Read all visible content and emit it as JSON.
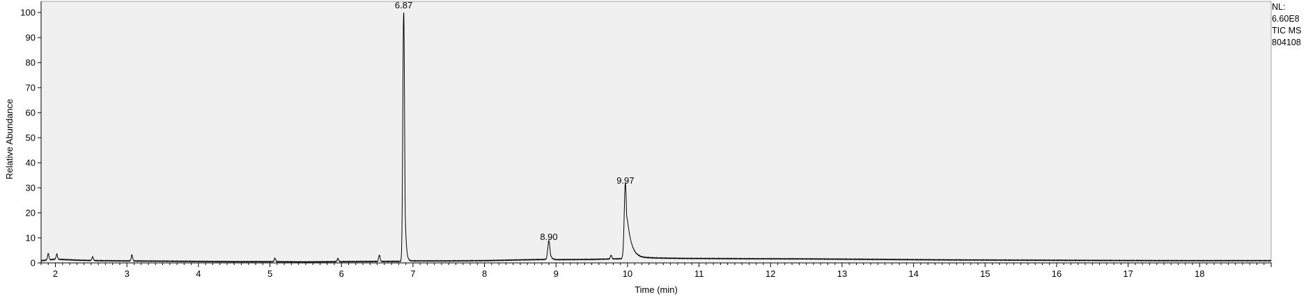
{
  "info": {
    "nl_label": "NL:",
    "nl_value": "6.60E8",
    "trace": "TIC  MS",
    "sample": "804108"
  },
  "colors": {
    "plot_background": "#f0f0f0",
    "trace": "#000000",
    "axis": "#000000"
  },
  "chart_data": {
    "type": "line",
    "xlabel": "Time (min)",
    "ylabel": "Relative Abundance",
    "xlim": [
      1.8,
      19.0
    ],
    "ylim": [
      0,
      100
    ],
    "x_ticks": [
      2,
      3,
      4,
      5,
      6,
      7,
      8,
      9,
      10,
      11,
      12,
      13,
      14,
      15,
      16,
      17,
      18
    ],
    "y_ticks": [
      0,
      10,
      20,
      30,
      40,
      50,
      60,
      70,
      80,
      90,
      100
    ],
    "grid": false,
    "legend": "none",
    "baseline": [
      [
        1.8,
        0.9
      ],
      [
        2.0,
        1.5
      ],
      [
        2.3,
        1.1
      ],
      [
        2.6,
        0.9
      ],
      [
        3.0,
        0.8
      ],
      [
        3.5,
        0.7
      ],
      [
        4.0,
        0.6
      ],
      [
        4.5,
        0.5
      ],
      [
        5.0,
        0.5
      ],
      [
        5.5,
        0.4
      ],
      [
        6.0,
        0.5
      ],
      [
        6.5,
        0.6
      ],
      [
        6.8,
        0.6
      ],
      [
        7.0,
        0.8
      ],
      [
        7.5,
        0.8
      ],
      [
        8.0,
        0.9
      ],
      [
        8.5,
        1.2
      ],
      [
        8.85,
        1.4
      ],
      [
        9.0,
        1.3
      ],
      [
        9.5,
        1.4
      ],
      [
        9.8,
        1.6
      ],
      [
        10.3,
        2.0
      ],
      [
        10.8,
        1.8
      ],
      [
        11.5,
        1.7
      ],
      [
        12.5,
        1.6
      ],
      [
        13.5,
        1.4
      ],
      [
        14.5,
        1.2
      ],
      [
        15.5,
        1.1
      ],
      [
        16.5,
        1.0
      ],
      [
        17.5,
        0.9
      ],
      [
        19.0,
        0.9
      ]
    ],
    "peaks": [
      {
        "rt": 1.9,
        "height": 2.5,
        "width": 0.01,
        "tail": 0
      },
      {
        "rt": 2.02,
        "height": 2.0,
        "width": 0.01,
        "tail": 0
      },
      {
        "rt": 2.52,
        "height": 1.5,
        "width": 0.01,
        "tail": 0
      },
      {
        "rt": 3.07,
        "height": 2.4,
        "width": 0.01,
        "tail": 0
      },
      {
        "rt": 5.07,
        "height": 1.4,
        "width": 0.01,
        "tail": 0
      },
      {
        "rt": 5.95,
        "height": 1.3,
        "width": 0.01,
        "tail": 0
      },
      {
        "rt": 6.53,
        "height": 2.5,
        "width": 0.01,
        "tail": 0
      },
      {
        "rt": 6.87,
        "height": 100,
        "width": 0.012,
        "tail": 0.015
      },
      {
        "rt": 8.9,
        "height": 7.5,
        "width": 0.015,
        "tail": 0.02
      },
      {
        "rt": 9.77,
        "height": 1.5,
        "width": 0.01,
        "tail": 0
      },
      {
        "rt": 9.97,
        "height": 30,
        "width": 0.016,
        "tail": 0.06
      }
    ],
    "peak_labels": [
      {
        "x": 6.87,
        "y": 100,
        "text": "6.87"
      },
      {
        "x": 8.9,
        "y": 7.5,
        "text": "8.90"
      },
      {
        "x": 9.97,
        "y": 30,
        "text": "9.97"
      }
    ]
  }
}
